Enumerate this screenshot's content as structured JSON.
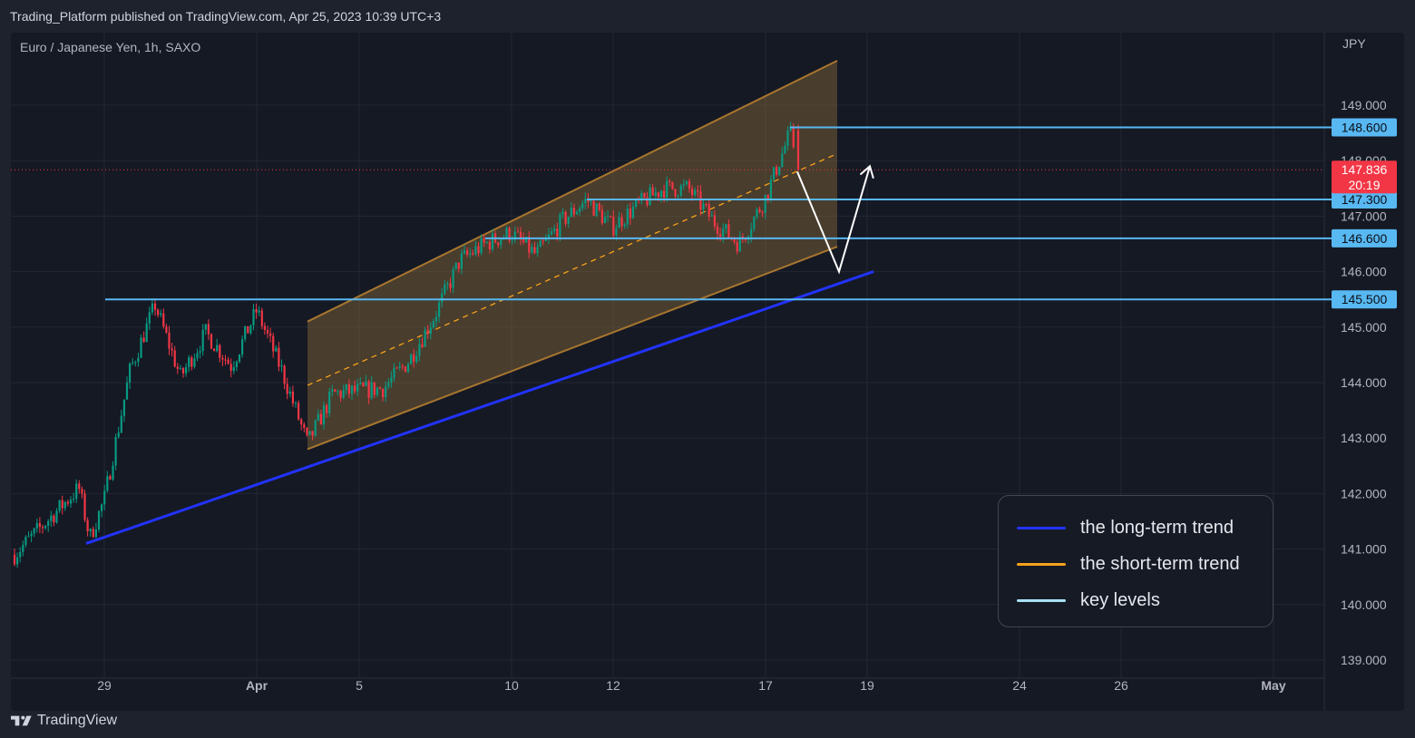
{
  "header": {
    "published_text": "Trading_Platform published on TradingView.com, Apr 25, 2023 10:39 UTC+3"
  },
  "symbol": "Euro / Japanese Yen, 1h, SAXO",
  "chart_data": {
    "type": "candlestick",
    "currency": "JPY",
    "y_ticks": [
      "149.000",
      "148.000",
      "147.000",
      "146.000",
      "145.000",
      "144.000",
      "143.000",
      "142.000",
      "141.000",
      "140.000",
      "139.000"
    ],
    "y_range": [
      138.9,
      150.0
    ],
    "x_ticks": [
      "29",
      "Apr",
      "5",
      "10",
      "12",
      "17",
      "19",
      "24",
      "26",
      "May"
    ],
    "x_range": [
      "Mar 27",
      "May 1"
    ],
    "price_path": [
      [
        "Mar 27",
        140.9
      ],
      [
        "Mar 28",
        142.1
      ],
      [
        "Mar 28",
        141.2
      ],
      [
        "Mar 29",
        141.9
      ],
      [
        "Mar 30",
        144.2
      ],
      [
        "Mar 31",
        145.4
      ],
      [
        "Apr 1",
        144.1
      ],
      [
        "Apr 2",
        144.9
      ],
      [
        "Apr 3",
        144.3
      ],
      [
        "Apr 4",
        145.3
      ],
      [
        "Apr 5",
        144.2
      ],
      [
        "Apr 6",
        142.9
      ],
      [
        "Apr 7",
        143.8
      ],
      [
        "Apr 9",
        143.9
      ],
      [
        "Apr 10",
        144.4
      ],
      [
        "Apr 11",
        145.2
      ],
      [
        "Apr 12",
        146.2
      ],
      [
        "Apr 13",
        146.5
      ],
      [
        "Apr 14",
        146.7
      ],
      [
        "Apr 15",
        146.3
      ],
      [
        "Apr 16",
        146.9
      ],
      [
        "Apr 17",
        147.3
      ],
      [
        "Apr 18",
        146.8
      ],
      [
        "Apr 19",
        147.2
      ],
      [
        "Apr 20",
        147.5
      ],
      [
        "Apr 21",
        147.5
      ],
      [
        "Apr 22",
        146.9
      ],
      [
        "Apr 23",
        146.5
      ],
      [
        "Apr 24",
        147.3
      ],
      [
        "Apr 25",
        148.5
      ],
      [
        "Apr 25",
        147.8
      ]
    ],
    "last_price": "147.836",
    "countdown": "20:19",
    "key_levels": [
      {
        "value": 148.6,
        "label": "148.600",
        "from": "Apr 25"
      },
      {
        "value": 147.3,
        "label": "147.300",
        "from": "Apr 17"
      },
      {
        "value": 146.6,
        "label": "146.600",
        "from": "Apr 13"
      },
      {
        "value": 145.5,
        "label": "145.500",
        "from": "Mar 31"
      }
    ],
    "long_term_trend": {
      "from": [
        "Mar 28",
        141.1
      ],
      "to": [
        "Apr 28",
        146.0
      ]
    },
    "short_term_channel": {
      "start": "Apr 6",
      "end": "Apr 26",
      "lower": [
        142.8,
        146.45
      ],
      "upper": [
        145.1,
        149.8
      ]
    },
    "projection": [
      [
        "Apr 25",
        147.8
      ],
      [
        "Apr 26",
        146.0
      ],
      [
        "Apr 27",
        147.9
      ]
    ],
    "legend": [
      {
        "label": "the long-term trend",
        "color": "#2233ff"
      },
      {
        "label": "the short-term trend",
        "color": "#f7a21b"
      },
      {
        "label": "key levels",
        "color": "#a7e2f8"
      }
    ],
    "colors": {
      "up": "#089981",
      "down": "#f23645",
      "level": "#58b8f2",
      "channel_fill": "#8a6a3a",
      "channel_border": "#a8762f",
      "price_tag": "#f23645",
      "level_tag": "#58b8f2"
    }
  },
  "footer": {
    "brand": "TradingView"
  }
}
